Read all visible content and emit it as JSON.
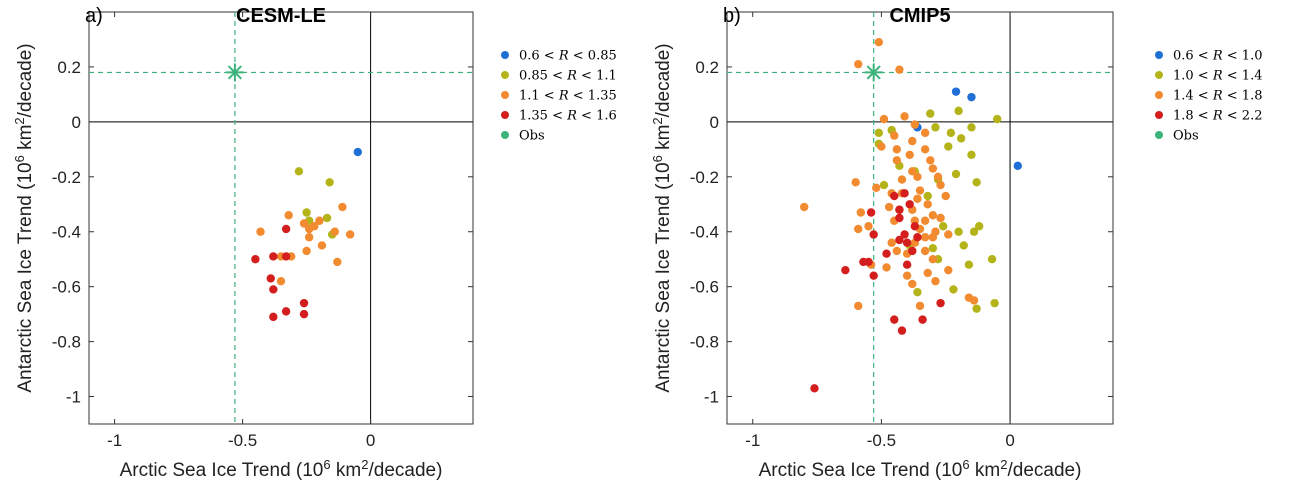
{
  "chart_data": [
    {
      "type": "scatter",
      "panel_label": "a)",
      "title": "CESM-LE",
      "xlabel": "Arctic Sea Ice Trend (10^6 km^2/decade)",
      "ylabel": "Antarctic Sea Ice Trend (10^6 km^2/decade)",
      "xlim": [
        -1.1,
        0.4
      ],
      "ylim": [
        -1.1,
        0.4
      ],
      "xticks": [
        -1,
        -0.5,
        0
      ],
      "xtick_labels": [
        "-1",
        "-0.5",
        "0"
      ],
      "yticks": [
        -1,
        -0.8,
        -0.6,
        -0.4,
        -0.2,
        0,
        0.2
      ],
      "ytick_labels": [
        "-1",
        "-0.8",
        "-0.6",
        "-0.4",
        "-0.2",
        "0",
        "0.2"
      ],
      "obs": {
        "x": -0.53,
        "y": 0.18,
        "color": "#3cb37a"
      },
      "legend": [
        {
          "lo": "0.6",
          "hi": "0.85",
          "color": "#1f6fd6"
        },
        {
          "lo": "0.85",
          "hi": "1.1",
          "color": "#b4b41a"
        },
        {
          "lo": "1.1",
          "hi": "1.35",
          "color": "#f28a30"
        },
        {
          "lo": "1.35",
          "hi": "1.6",
          "color": "#d41d1d"
        },
        {
          "obs": "Obs",
          "color": "#3cb37a"
        }
      ],
      "series": [
        {
          "color": "#1f6fd6",
          "points": [
            [
              -0.05,
              -0.11
            ]
          ]
        },
        {
          "color": "#b4b41a",
          "points": [
            [
              -0.28,
              -0.18
            ],
            [
              -0.16,
              -0.22
            ],
            [
              -0.25,
              -0.33
            ],
            [
              -0.17,
              -0.35
            ],
            [
              -0.15,
              -0.41
            ],
            [
              -0.24,
              -0.36
            ]
          ]
        },
        {
          "color": "#f28a30",
          "points": [
            [
              -0.43,
              -0.4
            ],
            [
              -0.32,
              -0.34
            ],
            [
              -0.26,
              -0.37
            ],
            [
              -0.24,
              -0.39
            ],
            [
              -0.22,
              -0.38
            ],
            [
              -0.11,
              -0.31
            ],
            [
              -0.08,
              -0.41
            ],
            [
              -0.14,
              -0.4
            ],
            [
              -0.19,
              -0.45
            ],
            [
              -0.25,
              -0.47
            ],
            [
              -0.13,
              -0.51
            ],
            [
              -0.35,
              -0.49
            ],
            [
              -0.31,
              -0.49
            ],
            [
              -0.35,
              -0.58
            ],
            [
              -0.24,
              -0.42
            ],
            [
              -0.2,
              -0.36
            ]
          ]
        },
        {
          "color": "#d41d1d",
          "points": [
            [
              -0.45,
              -0.5
            ],
            [
              -0.38,
              -0.49
            ],
            [
              -0.33,
              -0.39
            ],
            [
              -0.33,
              -0.49
            ],
            [
              -0.39,
              -0.57
            ],
            [
              -0.38,
              -0.61
            ],
            [
              -0.38,
              -0.71
            ],
            [
              -0.33,
              -0.69
            ],
            [
              -0.26,
              -0.66
            ],
            [
              -0.26,
              -0.7
            ]
          ]
        }
      ]
    },
    {
      "type": "scatter",
      "panel_label": "b)",
      "title": "CMIP5",
      "xlabel": "Arctic Sea Ice Trend (10^6 km^2/decade)",
      "ylabel": "Antarctic Sea Ice Trend (10^6 km^2/decade)",
      "xlim": [
        -1.1,
        0.4
      ],
      "ylim": [
        -1.1,
        0.4
      ],
      "xticks": [
        -1,
        -0.5,
        0
      ],
      "xtick_labels": [
        "-1",
        "-0.5",
        "0"
      ],
      "yticks": [
        -1,
        -0.8,
        -0.6,
        -0.4,
        -0.2,
        0,
        0.2
      ],
      "ytick_labels": [
        "-1",
        "-0.8",
        "-0.6",
        "-0.4",
        "-0.2",
        "0",
        "0.2"
      ],
      "obs": {
        "x": -0.53,
        "y": 0.18,
        "color": "#3cb37a"
      },
      "legend": [
        {
          "lo": "0.6",
          "hi": "1.0",
          "color": "#1f6fd6"
        },
        {
          "lo": "1.0",
          "hi": "1.4",
          "color": "#b4b41a"
        },
        {
          "lo": "1.4",
          "hi": "1.8",
          "color": "#f28a30"
        },
        {
          "lo": "1.8",
          "hi": "2.2",
          "color": "#d41d1d"
        },
        {
          "obs": "Obs",
          "color": "#3cb37a"
        }
      ],
      "series": [
        {
          "color": "#1f6fd6",
          "points": [
            [
              -0.21,
              0.11
            ],
            [
              -0.15,
              0.09
            ],
            [
              -0.36,
              -0.02
            ],
            [
              0.03,
              -0.16
            ]
          ]
        },
        {
          "color": "#b4b41a",
          "points": [
            [
              -0.31,
              0.03
            ],
            [
              -0.2,
              0.04
            ],
            [
              -0.05,
              0.01
            ],
            [
              -0.51,
              -0.04
            ],
            [
              -0.46,
              -0.03
            ],
            [
              -0.29,
              -0.02
            ],
            [
              -0.23,
              -0.04
            ],
            [
              -0.15,
              -0.02
            ],
            [
              -0.19,
              -0.06
            ],
            [
              -0.24,
              -0.09
            ],
            [
              -0.51,
              -0.08
            ],
            [
              -0.43,
              -0.16
            ],
            [
              -0.37,
              -0.18
            ],
            [
              -0.28,
              -0.21
            ],
            [
              -0.21,
              -0.19
            ],
            [
              -0.15,
              -0.12
            ],
            [
              -0.13,
              -0.22
            ],
            [
              -0.49,
              -0.23
            ],
            [
              -0.32,
              -0.27
            ],
            [
              -0.26,
              -0.38
            ],
            [
              -0.2,
              -0.4
            ],
            [
              -0.12,
              -0.38
            ],
            [
              -0.39,
              -0.45
            ],
            [
              -0.3,
              -0.46
            ],
            [
              -0.28,
              -0.5
            ],
            [
              -0.18,
              -0.45
            ],
            [
              -0.14,
              -0.4
            ],
            [
              -0.16,
              -0.52
            ],
            [
              -0.07,
              -0.5
            ],
            [
              -0.22,
              -0.61
            ],
            [
              -0.13,
              -0.68
            ],
            [
              -0.06,
              -0.66
            ],
            [
              -0.36,
              -0.62
            ]
          ]
        },
        {
          "color": "#f28a30",
          "points": [
            [
              -0.59,
              0.21
            ],
            [
              -0.51,
              0.29
            ],
            [
              -0.43,
              0.19
            ],
            [
              -0.49,
              0.01
            ],
            [
              -0.41,
              0.02
            ],
            [
              -0.37,
              -0.01
            ],
            [
              -0.45,
              -0.05
            ],
            [
              -0.38,
              -0.07
            ],
            [
              -0.33,
              -0.04
            ],
            [
              -0.5,
              -0.09
            ],
            [
              -0.44,
              -0.1
            ],
            [
              -0.39,
              -0.12
            ],
            [
              -0.33,
              -0.1
            ],
            [
              -0.44,
              -0.14
            ],
            [
              -0.38,
              -0.18
            ],
            [
              -0.31,
              -0.14
            ],
            [
              -0.3,
              -0.17
            ],
            [
              -0.42,
              -0.21
            ],
            [
              -0.36,
              -0.2
            ],
            [
              -0.28,
              -0.2
            ],
            [
              -0.52,
              -0.24
            ],
            [
              -0.46,
              -0.26
            ],
            [
              -0.42,
              -0.26
            ],
            [
              -0.35,
              -0.25
            ],
            [
              -0.32,
              -0.3
            ],
            [
              -0.27,
              -0.23
            ],
            [
              -0.25,
              -0.27
            ],
            [
              -0.8,
              -0.31
            ],
            [
              -0.47,
              -0.31
            ],
            [
              -0.43,
              -0.32
            ],
            [
              -0.38,
              -0.32
            ],
            [
              -0.36,
              -0.28
            ],
            [
              -0.3,
              -0.34
            ],
            [
              -0.27,
              -0.35
            ],
            [
              -0.6,
              -0.22
            ],
            [
              -0.58,
              -0.33
            ],
            [
              -0.55,
              -0.38
            ],
            [
              -0.45,
              -0.36
            ],
            [
              -0.37,
              -0.36
            ],
            [
              -0.33,
              -0.36
            ],
            [
              -0.29,
              -0.4
            ],
            [
              -0.24,
              -0.41
            ],
            [
              -0.59,
              -0.39
            ],
            [
              -0.46,
              -0.44
            ],
            [
              -0.35,
              -0.39
            ],
            [
              -0.33,
              -0.42
            ],
            [
              -0.3,
              -0.42
            ],
            [
              -0.44,
              -0.47
            ],
            [
              -0.4,
              -0.48
            ],
            [
              -0.37,
              -0.44
            ],
            [
              -0.33,
              -0.47
            ],
            [
              -0.3,
              -0.5
            ],
            [
              -0.54,
              -0.52
            ],
            [
              -0.48,
              -0.53
            ],
            [
              -0.4,
              -0.56
            ],
            [
              -0.32,
              -0.55
            ],
            [
              -0.24,
              -0.54
            ],
            [
              -0.38,
              -0.59
            ],
            [
              -0.29,
              -0.58
            ],
            [
              -0.59,
              -0.67
            ],
            [
              -0.35,
              -0.67
            ],
            [
              -0.16,
              -0.64
            ],
            [
              -0.14,
              -0.65
            ]
          ]
        },
        {
          "color": "#d41d1d",
          "points": [
            [
              -0.76,
              -0.97
            ],
            [
              -0.64,
              -0.54
            ],
            [
              -0.57,
              -0.51
            ],
            [
              -0.55,
              -0.51
            ],
            [
              -0.53,
              -0.41
            ],
            [
              -0.54,
              -0.33
            ],
            [
              -0.53,
              -0.56
            ],
            [
              -0.45,
              -0.27
            ],
            [
              -0.43,
              -0.32
            ],
            [
              -0.41,
              -0.26
            ],
            [
              -0.39,
              -0.3
            ],
            [
              -0.37,
              -0.38
            ],
            [
              -0.36,
              -0.42
            ],
            [
              -0.4,
              -0.44
            ],
            [
              -0.41,
              -0.41
            ],
            [
              -0.43,
              -0.43
            ],
            [
              -0.48,
              -0.48
            ],
            [
              -0.45,
              -0.72
            ],
            [
              -0.42,
              -0.76
            ],
            [
              -0.34,
              -0.72
            ],
            [
              -0.27,
              -0.66
            ],
            [
              -0.43,
              -0.35
            ],
            [
              -0.38,
              -0.47
            ],
            [
              -0.4,
              -0.52
            ]
          ]
        }
      ]
    }
  ]
}
